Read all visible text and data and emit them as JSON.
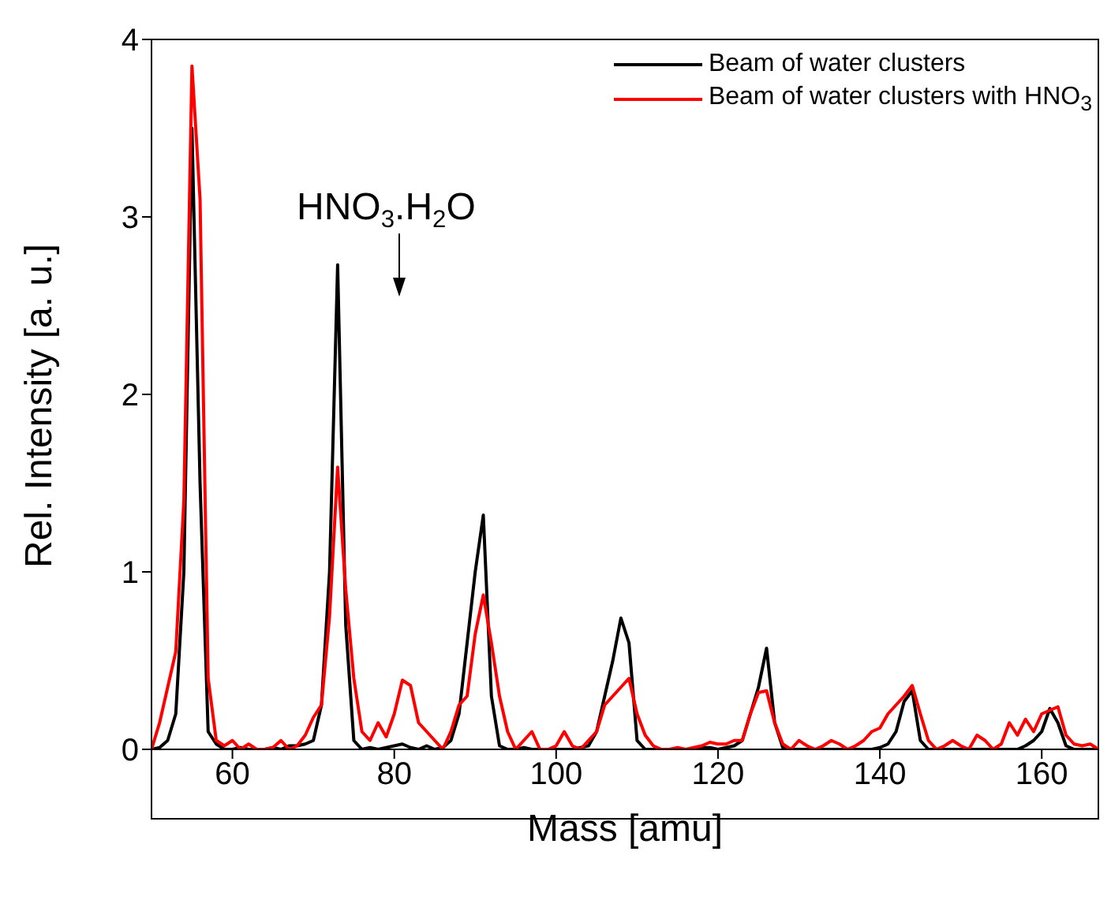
{
  "chart_data": {
    "type": "line",
    "xlabel": "Mass [amu]",
    "ylabel": "Rel. Intensity [a. u.]",
    "x": [
      50,
      51,
      52,
      53,
      54,
      55,
      56,
      57,
      58,
      59,
      60,
      61,
      62,
      63,
      64,
      65,
      66,
      67,
      68,
      69,
      70,
      71,
      72,
      73,
      74,
      75,
      76,
      77,
      78,
      79,
      80,
      81,
      82,
      83,
      84,
      85,
      86,
      87,
      88,
      89,
      90,
      91,
      92,
      93,
      94,
      95,
      96,
      97,
      98,
      99,
      100,
      101,
      102,
      103,
      104,
      105,
      106,
      107,
      108,
      109,
      110,
      111,
      112,
      113,
      114,
      115,
      116,
      117,
      118,
      119,
      120,
      121,
      122,
      123,
      124,
      125,
      126,
      127,
      128,
      129,
      130,
      131,
      132,
      133,
      134,
      135,
      136,
      137,
      138,
      139,
      140,
      141,
      142,
      143,
      144,
      145,
      146,
      147,
      148,
      149,
      150,
      151,
      152,
      153,
      154,
      155,
      156,
      157,
      158,
      159,
      160,
      161,
      162,
      163,
      164,
      165,
      166,
      167
    ],
    "series": [
      {
        "name": "Beam of water clusters",
        "color": "#000000",
        "values": [
          0,
          0.01,
          0.05,
          0.2,
          1.0,
          3.5,
          1.5,
          0.1,
          0.03,
          0,
          0,
          0.01,
          0,
          0,
          0,
          0.01,
          0,
          0.02,
          0.02,
          0.03,
          0.05,
          0.25,
          1.0,
          2.73,
          0.7,
          0.05,
          0,
          0.01,
          0,
          0.01,
          0.02,
          0.03,
          0.01,
          0,
          0.02,
          0,
          0.01,
          0.05,
          0.2,
          0.6,
          1.0,
          1.32,
          0.3,
          0.02,
          0,
          0,
          0.01,
          0,
          0,
          0,
          0,
          0,
          0,
          0.01,
          0.02,
          0.1,
          0.3,
          0.5,
          0.74,
          0.6,
          0.05,
          0,
          0,
          0,
          0,
          0,
          0,
          0,
          0.01,
          0.01,
          0,
          0.01,
          0.02,
          0.05,
          0.2,
          0.35,
          0.57,
          0.15,
          0.01,
          0,
          0,
          0,
          0,
          0,
          0,
          0,
          0,
          0,
          0,
          0,
          0.01,
          0.03,
          0.1,
          0.27,
          0.33,
          0.05,
          0,
          0,
          0,
          0,
          0,
          0,
          0,
          0,
          0,
          0,
          0,
          0,
          0.02,
          0.05,
          0.1,
          0.23,
          0.15,
          0.02,
          0,
          0,
          0,
          0
        ]
      },
      {
        "name": "Beam of water clusters with HNO$_{3}$",
        "color": "#ff0000",
        "values": [
          0,
          0.15,
          0.35,
          0.55,
          1.4,
          3.85,
          3.1,
          0.4,
          0.05,
          0.02,
          0.05,
          0,
          0.03,
          0,
          0,
          0.01,
          0.05,
          0,
          0.02,
          0.08,
          0.18,
          0.25,
          0.75,
          1.59,
          0.9,
          0.4,
          0.1,
          0.05,
          0.15,
          0.07,
          0.2,
          0.39,
          0.36,
          0.15,
          0.1,
          0.05,
          0,
          0.1,
          0.25,
          0.3,
          0.65,
          0.87,
          0.6,
          0.3,
          0.1,
          0,
          0.05,
          0.1,
          0,
          0,
          0.02,
          0.1,
          0.02,
          0,
          0.05,
          0.1,
          0.25,
          0.3,
          0.35,
          0.4,
          0.2,
          0.08,
          0.02,
          0,
          0,
          0.01,
          0,
          0.01,
          0.02,
          0.04,
          0.03,
          0.03,
          0.05,
          0.05,
          0.2,
          0.32,
          0.33,
          0.15,
          0.03,
          0,
          0.05,
          0.02,
          0,
          0.02,
          0.05,
          0.03,
          0,
          0.02,
          0.05,
          0.1,
          0.12,
          0.2,
          0.25,
          0.3,
          0.36,
          0.2,
          0.05,
          0,
          0.02,
          0.05,
          0.02,
          0,
          0.08,
          0.05,
          0,
          0.03,
          0.15,
          0.08,
          0.17,
          0.1,
          0.2,
          0.22,
          0.24,
          0.08,
          0.03,
          0.02,
          0.03,
          0
        ]
      }
    ],
    "annotations": [
      "HNO$_{3}$.H$_{2}$O"
    ],
    "xlim": [
      50,
      167
    ],
    "xticks": [
      60,
      80,
      100,
      120,
      140,
      160
    ],
    "ylim": [
      0,
      4
    ],
    "yticks": [
      0,
      1,
      2,
      3,
      4
    ],
    "legend": "top right"
  }
}
